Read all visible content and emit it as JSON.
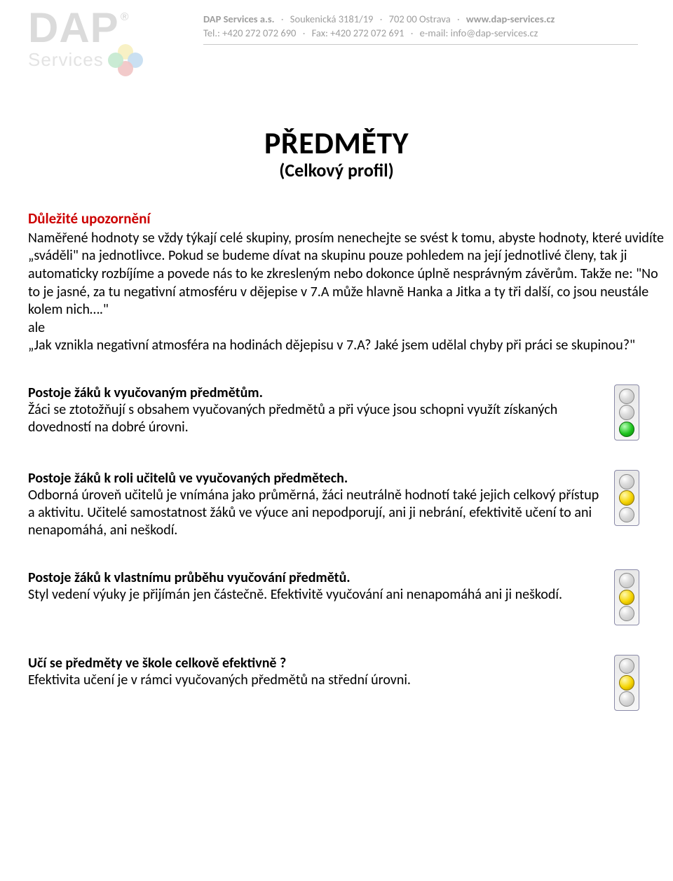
{
  "header": {
    "logo_main": "DAP",
    "logo_reg": "®",
    "logo_sub": "Services",
    "petal_colors": [
      "#e9d54a",
      "#5aa0d6",
      "#d65a5a",
      "#5ac27a"
    ],
    "company": "DAP Services a.s.",
    "address": "Soukenická 3181/19",
    "city": "702 00 Ostrava",
    "web": "www.dap-services.cz",
    "tel_label": "Tel.:",
    "tel": "+420 272 072 690",
    "fax_label": "Fax:",
    "fax": "+420 272 072 691",
    "email_label": "e-mail:",
    "email": "info@dap-services.cz",
    "separator": "·"
  },
  "title": {
    "main": "PŘEDMĚTY",
    "sub": "(Celkový profil)"
  },
  "warning": {
    "heading": "Důležité upozornění",
    "body": "Naměřené hodnoty se vždy týkají celé skupiny, prosím nenechejte se svést k tomu, abyste hodnoty, které uvidíte „sváděli\" na jednotlivce. Pokud se budeme dívat na skupinu pouze pohledem na její jednotlivé členy, tak ji automaticky rozbíjíme a povede nás to ke zkresleným nebo dokonce úplně nesprávným závěrům. Takže ne: \"No to je jasné, za tu negativní atmosféru v dějepise v 7.A může hlavně Hanka a Jitka a ty tři další, co jsou neustále kolem nich….\"",
    "line_ale": "ale",
    "body2": "„Jak vznikla negativní atmosféra na hodinách dějepisu v 7.A? Jaké jsem udělal chyby při práci se skupinou?\""
  },
  "sections": [
    {
      "heading": "Postoje žáků k vyučovaným předmětům.",
      "body": "Žáci se ztotožňují s obsahem vyučovaných předmětů a při výuce jsou schopni využít získaných dovedností na dobré úrovni.",
      "light": "green"
    },
    {
      "heading": "Postoje žáků k roli učitelů ve vyučovaných předmětech.",
      "body": "Odborná úroveň učitelů je vnímána jako průměrná, žáci neutrálně hodnotí také jejich celkový přístup a aktivitu. Učitelé samostatnost žáků ve výuce ani nepodporují, ani ji nebrání, efektivitě učení to ani nenapomáhá, ani neškodí.",
      "light": "yellow"
    },
    {
      "heading": "Postoje žáků k vlastnímu průběhu vyučování předmětů.",
      "body": "Styl vedení výuky je přijímán jen částečně. Efektivitě vyučování ani nenapomáhá ani ji neškodí.",
      "light": "yellow"
    },
    {
      "heading": "Učí se předměty ve škole celkově efektivně ?",
      "body": "Efektivita učení je v rámci vyučovaných předmětů na střední úrovni.",
      "light": "yellow"
    }
  ],
  "colors": {
    "warn_heading": "#cc0000",
    "text": "#000000",
    "header_text": "#9e9e9e"
  }
}
